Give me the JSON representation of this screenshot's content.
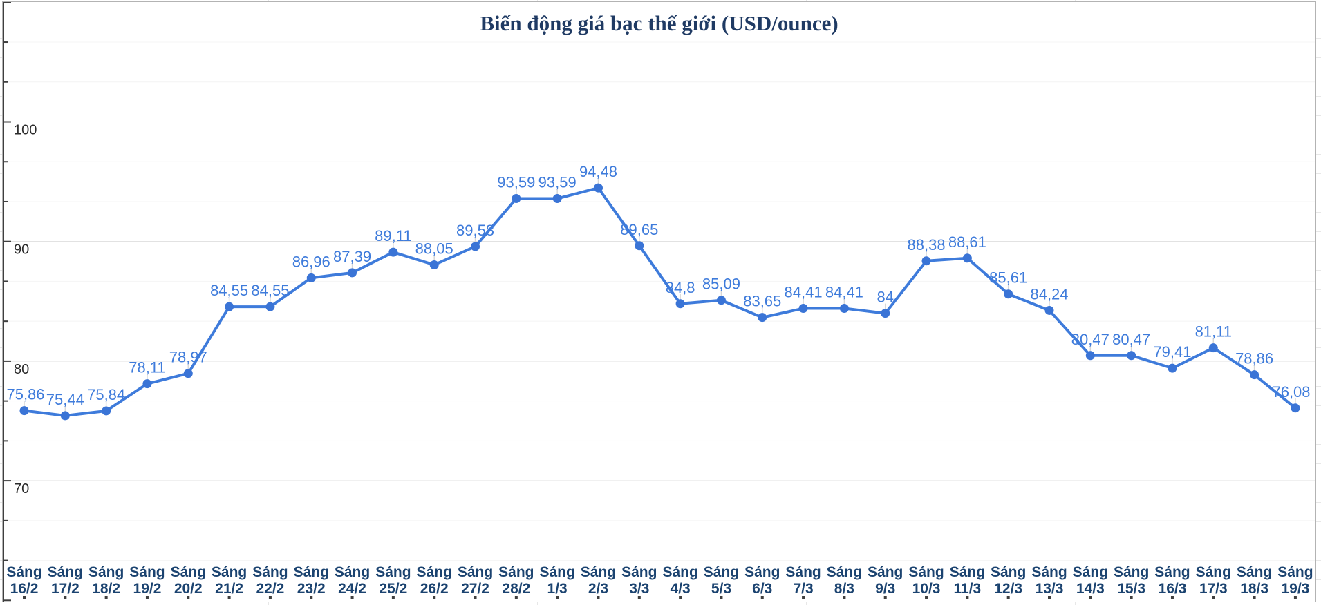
{
  "chart_data": {
    "type": "line",
    "title": "Biến động giá bạc thế giới (USD/ounce)",
    "category_prefix": "Sáng",
    "categories": [
      "16/2",
      "17/2",
      "18/2",
      "19/2",
      "20/2",
      "21/2",
      "22/2",
      "23/2",
      "24/2",
      "25/2",
      "26/2",
      "27/2",
      "28/2",
      "1/3",
      "2/3",
      "3/3",
      "4/3",
      "5/3",
      "6/3",
      "7/3",
      "8/3",
      "9/3",
      "10/3",
      "11/3",
      "12/3",
      "13/3",
      "14/3",
      "15/3",
      "16/3",
      "17/3",
      "18/3",
      "19/3"
    ],
    "values": [
      75.86,
      75.44,
      75.84,
      78.11,
      78.97,
      84.55,
      84.55,
      86.96,
      87.39,
      89.11,
      88.05,
      89.58,
      93.59,
      93.59,
      94.48,
      89.65,
      84.8,
      85.09,
      83.65,
      84.41,
      84.41,
      84,
      88.38,
      88.61,
      85.61,
      84.24,
      80.47,
      80.47,
      79.41,
      81.11,
      78.86,
      76.08
    ],
    "point_labels": [
      "75,86",
      "75,44",
      "75,84",
      "78,11",
      "78,97",
      "84,55",
      "84,55",
      "86,96",
      "87,39",
      "89,11",
      "88,05",
      "89,58",
      "93,59",
      "93,59",
      "94,48",
      "89,65",
      "84,8",
      "85,09",
      "83,65",
      "84,41",
      "84,41",
      "84",
      "88,38",
      "88,61",
      "85,61",
      "84,24",
      "80,47",
      "80,47",
      "79,41",
      "81,11",
      "78,86",
      "76,08"
    ],
    "decimal_separator": ",",
    "xlabel": "",
    "ylabel": "",
    "ylim": [
      60,
      110
    ],
    "yticks": [
      100,
      90,
      80,
      70
    ],
    "grid": true,
    "legend": "none",
    "colors": {
      "line": "#3e7bdb",
      "marker": "#3a74d6",
      "data_label": "#3e7bdb",
      "x_label": "#1b4370",
      "y_label": "#2b2b2b",
      "title": "#1f3a63",
      "grid_major": "#d8d8d8",
      "grid_minor": "#f4f4f4",
      "axis": "#3f3f3f",
      "leader_line": "#d7d7d7",
      "chart_border": "#b3b3b3"
    }
  }
}
